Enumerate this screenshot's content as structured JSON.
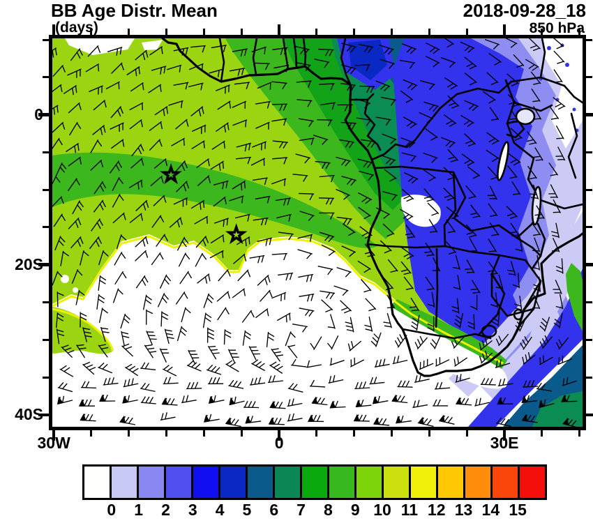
{
  "header": {
    "title": "BB Age Distr. Mean",
    "units": "(days)",
    "datetime": "2018-09-28_18",
    "level": "850 hPa"
  },
  "axes": {
    "y_ticks": [
      {
        "label": "0",
        "lat": 0
      },
      {
        "label": "20S",
        "lat": -20
      },
      {
        "label": "40S",
        "lat": -40
      }
    ],
    "x_ticks": [
      {
        "label": "30W",
        "lon": -30
      },
      {
        "label": "0",
        "lon": 0
      },
      {
        "label": "30E",
        "lon": 30
      }
    ],
    "minor_tick_interval_deg": 5
  },
  "colorbar": {
    "labels": [
      "0",
      "1",
      "2",
      "3",
      "4",
      "5",
      "6",
      "7",
      "8",
      "9",
      "10",
      "11",
      "12",
      "13",
      "14",
      "15"
    ],
    "colors": [
      "#FFFFFE",
      "#C8C8F4",
      "#8888F0",
      "#5050F0",
      "#0F0FF0",
      "#0A28C3",
      "#0A5A8C",
      "#0A8755",
      "#0AAA0F",
      "#37B81E",
      "#7DD40A",
      "#CCE010",
      "#F0F00A",
      "#FFC805",
      "#FF8C0A",
      "#FA460A",
      "#F50F0A"
    ]
  },
  "chart_data": {
    "type": "heatmap",
    "title": "BB Age Distr. Mean",
    "units": "days",
    "valid_time": "2018-09-28_18",
    "pressure_level": "850 hPa",
    "projection": "cylindrical lat-lon over southern Africa / South Atlantic",
    "lon_range": [
      -30.2,
      40.4
    ],
    "lat_range": [
      -41.6,
      10.2
    ],
    "contour_levels": [
      0,
      1,
      2,
      3,
      4,
      5,
      6,
      7,
      8,
      9,
      10,
      11,
      12,
      13,
      14,
      15
    ],
    "palette": [
      "#FFFFFE",
      "#C8C8F4",
      "#8888F0",
      "#5050F0",
      "#0F0FF0",
      "#0A28C3",
      "#0A5A8C",
      "#0A8755",
      "#0AAA0F",
      "#37B81E",
      "#7DD40A",
      "#CCE010",
      "#F0F00A",
      "#FFC805",
      "#FF8C0A",
      "#FA460A",
      "#F50F0A"
    ],
    "region_fills": {
      "yellow_green": "#9BD411",
      "green": "#3CB81E",
      "dark_green": "#12A319",
      "sea_green": "#0B8C52",
      "teal_blue": "#0A5A8C",
      "navy": "#0A28C3",
      "royal_blue": "#3333EE",
      "periwinkle": "#8E8EF2",
      "lavender": "#CBCBF6",
      "white": "#FFFFFF",
      "fringe_yellow": "#EEF200",
      "lake_fill": "#E6E6FA"
    },
    "regions": [
      {
        "value_range": "9-11 days",
        "hex": "#9BD411",
        "area": "South Atlantic and Gulf of Guinea west of ~5E, aged smoke plume"
      },
      {
        "value_range": "8-9 days",
        "hex": "#3CB81E",
        "area": "band across tropical Atlantic toward Angola coast"
      },
      {
        "value_range": "7-8 days",
        "hex": "#12A319",
        "area": "near Gulf of Guinea / Gabon coast"
      },
      {
        "value_range": "6-7 days",
        "hex": "#0B8C52",
        "area": "Congo basin western edge"
      },
      {
        "value_range": "5-6 days",
        "hex": "#0A5A8C",
        "area": "transition over western DRC"
      },
      {
        "value_range": "2-5 days",
        "hex": "#3333EE",
        "area": "central-southern Africa (DRC, Zambia, Zimbabwe) young smoke"
      },
      {
        "value_range": "1-2 days",
        "hex": "#8E8EF2",
        "area": "Tanzania / Mozambique"
      },
      {
        "value_range": "0-1 days",
        "hex": "#CBCBF6",
        "area": "east coast and SE Indian Ocean band"
      },
      {
        "value_range": "no smoke",
        "hex": "#FFFFFF",
        "area": "subtropical South Atlantic, interior South Africa, NE corner"
      }
    ],
    "markers": [
      {
        "symbol": "star",
        "lon": -14.4,
        "lat": -8.0
      },
      {
        "symbol": "star",
        "lon": -5.7,
        "lat": -16.0
      }
    ],
    "wind_field": {
      "style": "barbs",
      "gyre_center": {
        "lon": 4.0,
        "lat": -31.5
      },
      "westerly_blend_start_lat": -27,
      "pennants_south_of_lat": -37,
      "note": "anticyclonic gyre (St. Helena High) with strong westerlies along southern edge"
    }
  }
}
